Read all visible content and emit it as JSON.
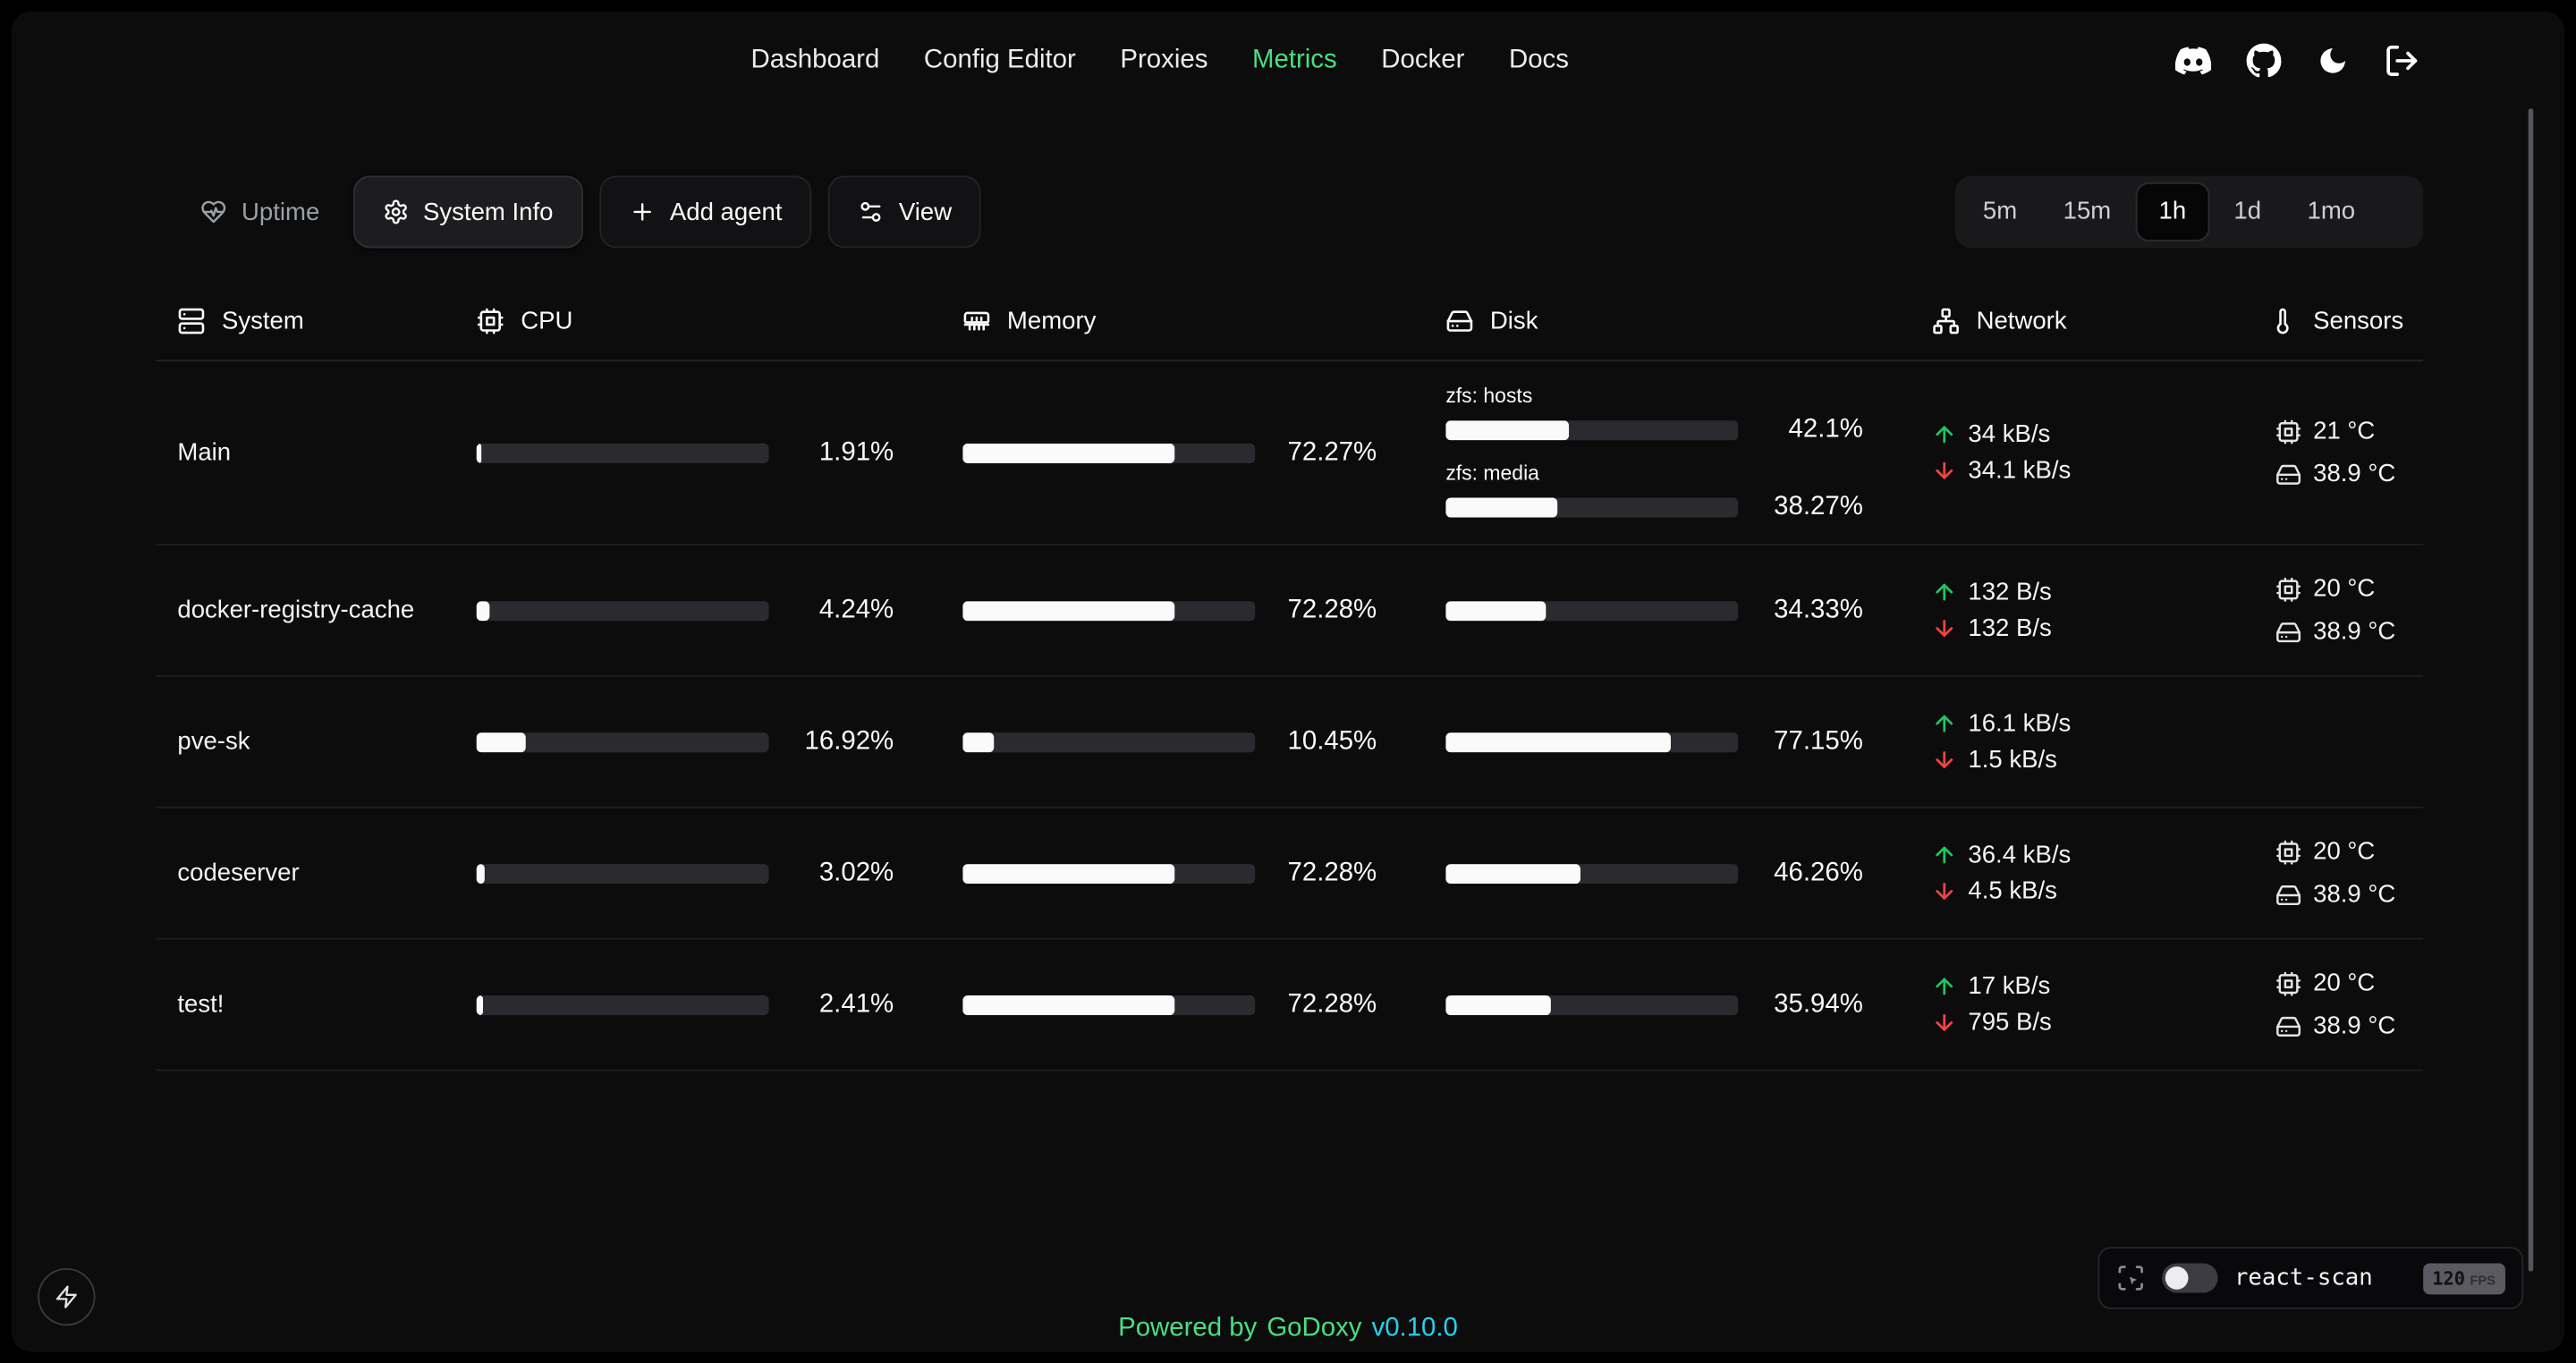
{
  "nav": {
    "items": [
      {
        "label": "Dashboard"
      },
      {
        "label": "Config Editor"
      },
      {
        "label": "Proxies"
      },
      {
        "label": "Metrics"
      },
      {
        "label": "Docker"
      },
      {
        "label": "Docs"
      }
    ],
    "active": "Metrics",
    "right_icons": [
      "discord-icon",
      "github-icon",
      "moon-icon",
      "logout-icon"
    ]
  },
  "toolbar": {
    "uptime_label": "Uptime",
    "system_info_label": "System Info",
    "add_agent_label": "Add agent",
    "view_label": "View",
    "time_ranges": [
      "5m",
      "15m",
      "1h",
      "1d",
      "1mo"
    ],
    "active_range": "1h"
  },
  "table": {
    "columns": [
      "System",
      "CPU",
      "Memory",
      "Disk",
      "Network",
      "Sensors"
    ],
    "rows": [
      {
        "name": "Main",
        "cpu": {
          "pct": 1.91,
          "label": "1.91%"
        },
        "memory": {
          "pct": 72.27,
          "label": "72.27%"
        },
        "disks": [
          {
            "name": "zfs: hosts",
            "pct": 42.1,
            "label": "42.1%"
          },
          {
            "name": "zfs: media",
            "pct": 38.27,
            "label": "38.27%"
          }
        ],
        "network": {
          "up": "34 kB/s",
          "down": "34.1 kB/s"
        },
        "sensors": {
          "cpu_temp": "21 °C",
          "disk_temp": "38.9 °C"
        }
      },
      {
        "name": "docker-registry-cache",
        "cpu": {
          "pct": 4.24,
          "label": "4.24%"
        },
        "memory": {
          "pct": 72.28,
          "label": "72.28%"
        },
        "disks": [
          {
            "name": "",
            "pct": 34.33,
            "label": "34.33%"
          }
        ],
        "network": {
          "up": "132 B/s",
          "down": "132 B/s"
        },
        "sensors": {
          "cpu_temp": "20 °C",
          "disk_temp": "38.9 °C"
        }
      },
      {
        "name": "pve-sk",
        "cpu": {
          "pct": 16.92,
          "label": "16.92%"
        },
        "memory": {
          "pct": 10.45,
          "label": "10.45%"
        },
        "disks": [
          {
            "name": "",
            "pct": 77.15,
            "label": "77.15%"
          }
        ],
        "network": {
          "up": "16.1 kB/s",
          "down": "1.5 kB/s"
        },
        "sensors": null
      },
      {
        "name": "codeserver",
        "cpu": {
          "pct": 3.02,
          "label": "3.02%"
        },
        "memory": {
          "pct": 72.28,
          "label": "72.28%"
        },
        "disks": [
          {
            "name": "",
            "pct": 46.26,
            "label": "46.26%"
          }
        ],
        "network": {
          "up": "36.4 kB/s",
          "down": "4.5 kB/s"
        },
        "sensors": {
          "cpu_temp": "20 °C",
          "disk_temp": "38.9 °C"
        }
      },
      {
        "name": "test!",
        "cpu": {
          "pct": 2.41,
          "label": "2.41%"
        },
        "memory": {
          "pct": 72.28,
          "label": "72.28%"
        },
        "disks": [
          {
            "name": "",
            "pct": 35.94,
            "label": "35.94%"
          }
        ],
        "network": {
          "up": "17 kB/s",
          "down": "795 B/s"
        },
        "sensors": {
          "cpu_temp": "20 °C",
          "disk_temp": "38.9 °C"
        }
      }
    ]
  },
  "footer": {
    "powered_by": "Powered by",
    "brand": "GoDoxy",
    "version": "v0.10.0"
  },
  "react_scan": {
    "label": "react-scan",
    "fps": "120",
    "fps_unit": "FPS",
    "toggle_state": "off"
  },
  "colors": {
    "accent_green": "#4ade80",
    "up_green": "#22c55e",
    "down_red": "#ef4444",
    "version_cyan": "#22d3ee",
    "background": "#0c0c0d",
    "bar_fill": "#fafafa",
    "bar_track": "#2a2a2f"
  }
}
